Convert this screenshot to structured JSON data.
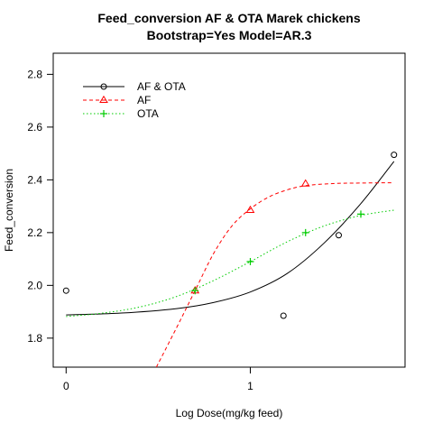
{
  "chart_data": {
    "type": "line",
    "title": "Feed_conversion AF & OTA  Marek chickens",
    "subtitle": "Bootstrap=Yes Model=AR.3",
    "xlabel": "Log Dose(mg/kg feed)",
    "ylabel": "Feed_conversion",
    "xlim": [
      -0.07,
      1.84
    ],
    "ylim": [
      1.69,
      2.88
    ],
    "x_ticks": [
      0,
      1
    ],
    "x_tick_labels": [
      "0",
      "1"
    ],
    "y_ticks": [
      1.8,
      2.0,
      2.2,
      2.4,
      2.6,
      2.8
    ],
    "y_tick_labels": [
      "1.8",
      "2.0",
      "2.2",
      "2.4",
      "2.6",
      "2.8"
    ],
    "grid": false,
    "legend_position": "top-left",
    "series": [
      {
        "name": "AF & OTA",
        "color": "#000000",
        "marker": "circle",
        "line_style": "solid",
        "points": [
          [
            0,
            1.98
          ],
          [
            1.18,
            1.885
          ],
          [
            1.48,
            2.19
          ],
          [
            1.78,
            2.495
          ]
        ],
        "curve": [
          [
            0,
            1.888
          ],
          [
            0.3,
            1.895
          ],
          [
            0.6,
            1.912
          ],
          [
            0.8,
            1.935
          ],
          [
            1.0,
            1.975
          ],
          [
            1.2,
            2.045
          ],
          [
            1.4,
            2.16
          ],
          [
            1.6,
            2.31
          ],
          [
            1.78,
            2.47
          ]
        ]
      },
      {
        "name": "AF",
        "color": "#ff0000",
        "marker": "triangle",
        "line_style": "dashed",
        "points": [
          [
            0.7,
            1.98
          ],
          [
            1.0,
            2.285
          ],
          [
            1.3,
            2.385
          ]
        ],
        "curve": [
          [
            0.49,
            1.69
          ],
          [
            0.6,
            1.84
          ],
          [
            0.7,
            1.98
          ],
          [
            0.8,
            2.12
          ],
          [
            0.9,
            2.225
          ],
          [
            1.0,
            2.29
          ],
          [
            1.1,
            2.335
          ],
          [
            1.2,
            2.362
          ],
          [
            1.3,
            2.378
          ],
          [
            1.45,
            2.386
          ],
          [
            1.6,
            2.388
          ],
          [
            1.78,
            2.389
          ]
        ]
      },
      {
        "name": "OTA",
        "color": "#00cc00",
        "marker": "plus",
        "line_style": "dotted",
        "points": [
          [
            0.7,
            1.98
          ],
          [
            1.0,
            2.09
          ],
          [
            1.3,
            2.2
          ],
          [
            1.6,
            2.27
          ]
        ],
        "curve": [
          [
            0,
            1.882
          ],
          [
            0.2,
            1.895
          ],
          [
            0.4,
            1.918
          ],
          [
            0.6,
            1.958
          ],
          [
            0.8,
            2.018
          ],
          [
            1.0,
            2.09
          ],
          [
            1.2,
            2.165
          ],
          [
            1.4,
            2.225
          ],
          [
            1.6,
            2.265
          ],
          [
            1.78,
            2.285
          ]
        ]
      }
    ]
  }
}
